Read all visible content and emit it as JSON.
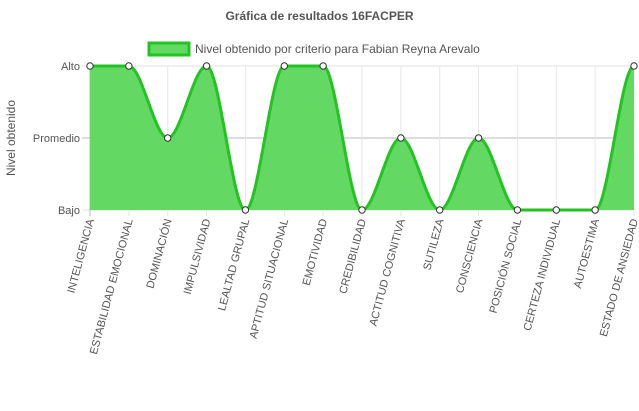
{
  "chart_data": {
    "type": "area",
    "title": "Gráfica de resultados 16FACPER",
    "ylabel": "Nivel obtenido",
    "xlabel": "",
    "y_levels": [
      "Bajo",
      "Promedio",
      "Alto"
    ],
    "ylim": [
      0,
      2
    ],
    "grid": true,
    "legend_position": "top",
    "categories": [
      "INTELIGENCIA",
      "ESTABILIDAD EMOCIONAL",
      "DOMINACIÓN",
      "IMPULSIVIDAD",
      "LEALTAD GRUPAL",
      "APTITUD SITUACIONAL",
      "EMOTIVIDAD",
      "CREDIBILIDAD",
      "ACTITUD COGNITIVA",
      "SUTILEZA",
      "CONSCIENCIA",
      "POSICIÓN SOCIAL",
      "CERTEZA INDIVIDUAL",
      "AUTOESTIMA",
      "ESTADO DE ANSIEDAD"
    ],
    "series": [
      {
        "name": "Nivel obtenido por criterio para Fabian Reyna Arevalo",
        "values": [
          2,
          2,
          1,
          2,
          0,
          2,
          2,
          0,
          1,
          0,
          1,
          0,
          0,
          0,
          2
        ],
        "line_color": "#22c422",
        "fill_color": "#63d863"
      }
    ]
  }
}
